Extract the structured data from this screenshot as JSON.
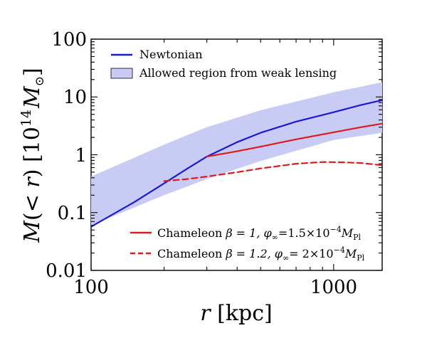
{
  "chart_data": {
    "type": "line",
    "xscale": "log",
    "yscale": "log",
    "xlim": [
      100,
      1585
    ],
    "ylim": [
      0.01,
      100
    ],
    "xlabel": "r [kpc]",
    "ylabel": "M(< r) [10^14 M_⊙]",
    "x_ticks": [
      {
        "value": 100,
        "label": "100"
      },
      {
        "value": 1000,
        "label": "1000"
      }
    ],
    "y_ticks": [
      {
        "value": 0.01,
        "label": "0.01"
      },
      {
        "value": 0.1,
        "label": "0.1"
      },
      {
        "value": 1,
        "label": "1"
      },
      {
        "value": 10,
        "label": "10"
      },
      {
        "value": 100,
        "label": "100"
      }
    ],
    "band": {
      "name": "Allowed region from weak lensing",
      "color": "#c8ccf4",
      "x": [
        100,
        200,
        300,
        500,
        1000,
        1585
      ],
      "lower": [
        0.06,
        0.2,
        0.38,
        0.78,
        1.8,
        2.4
      ],
      "upper": [
        0.42,
        1.5,
        3.0,
        5.9,
        12.0,
        18.0
      ]
    },
    "series": [
      {
        "name": "Newtonian",
        "color": "#1a1ad6",
        "dash": "solid",
        "x": [
          100,
          150,
          200,
          250,
          300,
          400,
          500,
          700,
          1000,
          1300,
          1585
        ],
        "y": [
          0.057,
          0.15,
          0.32,
          0.58,
          0.93,
          1.65,
          2.4,
          3.75,
          5.45,
          7.3,
          8.8
        ]
      },
      {
        "name": "Chameleon β = 1, φ∞ = 1.5×10⁻⁴ M_Pl",
        "color": "#e01a1a",
        "dash": "solid",
        "x": [
          300,
          400,
          500,
          700,
          1000,
          1300,
          1585
        ],
        "y": [
          0.93,
          1.15,
          1.38,
          1.85,
          2.45,
          3.0,
          3.45
        ]
      },
      {
        "name": "Chameleon β = 1.2, φ∞ = 2×10⁻⁴ M_Pl",
        "color": "#e01a1a",
        "dash": "dashed",
        "x": [
          200,
          250,
          300,
          400,
          500,
          700,
          900,
          1100,
          1300,
          1585
        ],
        "y": [
          0.35,
          0.38,
          0.42,
          0.5,
          0.58,
          0.7,
          0.75,
          0.74,
          0.72,
          0.66
        ]
      }
    ],
    "legend_top": {
      "newtonian": "Newtonian",
      "band": "Allowed region from weak lensing"
    },
    "legend_bottom": {
      "cham1": {
        "label": "Chameleon",
        "beta": "β = 1,",
        "phi": "φ",
        "phi_sub": "∞",
        "eq": "=1.5×10",
        "exp": "−4",
        "m": "M",
        "m_sub": "Pl"
      },
      "cham2": {
        "label": "Chameleon",
        "beta": "β = 1.2,",
        "phi": "φ",
        "phi_sub": "∞",
        "eq": "= 2×10",
        "exp": "−4",
        "m": "M",
        "m_sub": "Pl"
      }
    },
    "axis_titles": {
      "x_var": "r",
      "x_unit": "[kpc]",
      "y_var": "M",
      "y_mid": "(< ",
      "y_var2": "r",
      "y_mid2": ") [10",
      "y_exp": "14",
      "y_var3": "M",
      "y_sun": "⊙",
      "y_end": "]"
    }
  }
}
